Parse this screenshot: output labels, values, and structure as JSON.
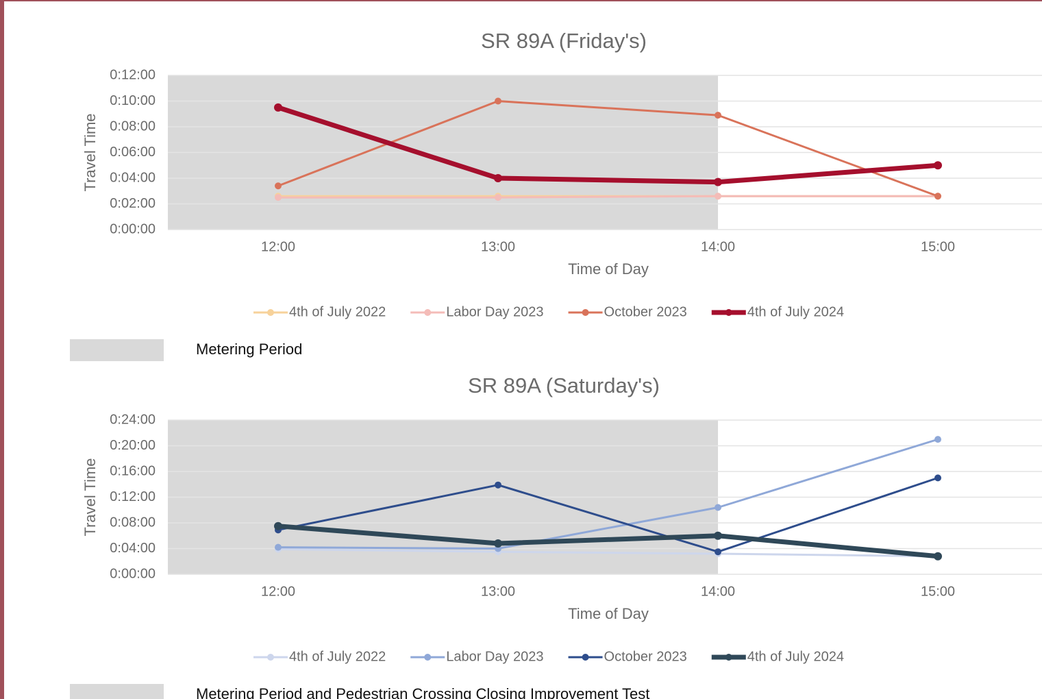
{
  "chart_data": [
    {
      "type": "line",
      "title": "SR 89A (Friday's)",
      "x_label": "Time of Day",
      "y_label": "Travel Time",
      "categories": [
        "12:00",
        "13:00",
        "14:00",
        "15:00"
      ],
      "ylim": [
        0,
        12
      ],
      "yticks": [
        {
          "value": 0,
          "label": "0:00:00"
        },
        {
          "value": 2,
          "label": "0:02:00"
        },
        {
          "value": 4,
          "label": "0:04:00"
        },
        {
          "value": 6,
          "label": "0:06:00"
        },
        {
          "value": 8,
          "label": "0:08:00"
        },
        {
          "value": 10,
          "label": "0:10:00"
        },
        {
          "value": 12,
          "label": "0:12:00"
        }
      ],
      "grid": true,
      "shade": {
        "label": "Metering Period",
        "until": "14:00",
        "color": "#d9d9d9"
      },
      "series": [
        {
          "name": "4th of July 2022",
          "color": "#f7d29a",
          "line_width": 3,
          "values": [
            2.6,
            2.6,
            2.6,
            2.6
          ]
        },
        {
          "name": "Labor Day 2023",
          "color": "#f4bcb8",
          "line_width": 3,
          "values": [
            2.5,
            2.5,
            2.6,
            2.6
          ]
        },
        {
          "name": "October 2023",
          "color": "#d9735a",
          "line_width": 3,
          "values": [
            3.4,
            10,
            8.9,
            2.6
          ]
        },
        {
          "name": "4th of July 2024",
          "color": "#a50f2d",
          "line_width": 7,
          "values": [
            9.5,
            4,
            3.7,
            5
          ]
        }
      ]
    },
    {
      "type": "line",
      "title": "SR 89A (Saturday's)",
      "x_label": "Time of Day",
      "y_label": "Travel Time",
      "categories": [
        "12:00",
        "13:00",
        "14:00",
        "15:00"
      ],
      "ylim": [
        0,
        24
      ],
      "yticks": [
        {
          "value": 0,
          "label": "0:00:00"
        },
        {
          "value": 4,
          "label": "0:04:00"
        },
        {
          "value": 8,
          "label": "0:08:00"
        },
        {
          "value": 12,
          "label": "0:12:00"
        },
        {
          "value": 16,
          "label": "0:16:00"
        },
        {
          "value": 20,
          "label": "0:20:00"
        },
        {
          "value": 24,
          "label": "0:24:00"
        }
      ],
      "grid": true,
      "shade": {
        "label": "Metering Period and Pedestrian Crossing Closing Improvement Test",
        "until": "14:00",
        "color": "#d9d9d9"
      },
      "series": [
        {
          "name": "4th of July 2022",
          "color": "#cdd6ec",
          "line_width": 3,
          "values": [
            3.9,
            3.5,
            3.2,
            2.8
          ]
        },
        {
          "name": "Labor Day 2023",
          "color": "#8fa8d8",
          "line_width": 3,
          "values": [
            4.2,
            4,
            10.4,
            21
          ]
        },
        {
          "name": "October 2023",
          "color": "#2e4d8c",
          "line_width": 3,
          "values": [
            6.9,
            13.9,
            3.5,
            15
          ]
        },
        {
          "name": "4th of July 2024",
          "color": "#2f4858",
          "line_width": 7,
          "values": [
            7.5,
            4.8,
            6,
            2.8
          ]
        }
      ]
    }
  ]
}
